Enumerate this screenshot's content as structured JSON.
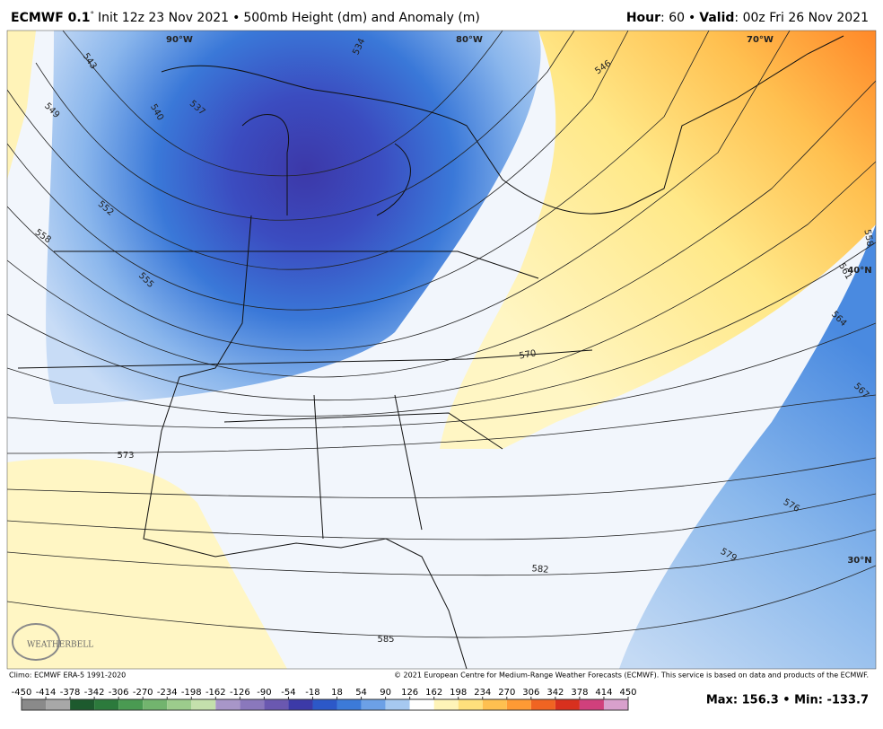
{
  "header": {
    "model": "ECMWF 0.1",
    "degree": "°",
    "init": "Init 12z 23 Nov 2021",
    "separator": "•",
    "product": "500mb Height (dm) and Anomaly (m)",
    "hour_label": "Hour",
    "hour": ": 60",
    "valid_label": "Valid",
    "valid": ": 00z Fri 26 Nov 2021"
  },
  "map": {
    "longitudes": [
      "90°W",
      "80°W",
      "70°W"
    ],
    "latitudes": [
      "40°N",
      "30°N"
    ],
    "contour_labels": [
      543,
      549,
      540,
      537,
      534,
      552,
      558,
      555,
      546,
      570,
      573,
      561,
      564,
      567,
      576,
      579,
      582,
      585,
      558
    ],
    "logo": "WEATHERBELL"
  },
  "footer": {
    "climo": "Climo: ECMWF ERA-5 1991-2020",
    "copyright": "© 2021 European Centre for Medium-Range Weather Forecasts (ECMWF). This service is based on data and products of the ECMWF.",
    "stats": "Max: 156.3 • Min: -133.7"
  },
  "colorbar": {
    "ticks": [
      -450,
      -414,
      -378,
      -342,
      -306,
      -270,
      -234,
      -198,
      -162,
      -126,
      -90,
      -54,
      -18,
      18,
      54,
      90,
      126,
      162,
      198,
      234,
      270,
      306,
      342,
      378,
      414,
      450
    ],
    "colors": [
      "#8a8a8a",
      "#a8a8a8",
      "#1d5a2e",
      "#2c7a3c",
      "#4a9a52",
      "#72b46e",
      "#9ccc8c",
      "#c4e0ac",
      "#a896c8",
      "#8a78bc",
      "#6a58b0",
      "#3c3aa8",
      "#2c58c8",
      "#3c7ad8",
      "#6ca0e6",
      "#a6c8f0",
      "#ffffff",
      "#fff4b8",
      "#ffe07c",
      "#ffc050",
      "#ff9a34",
      "#f06422",
      "#d8301e",
      "#d0407c",
      "#d8a0cc"
    ]
  }
}
